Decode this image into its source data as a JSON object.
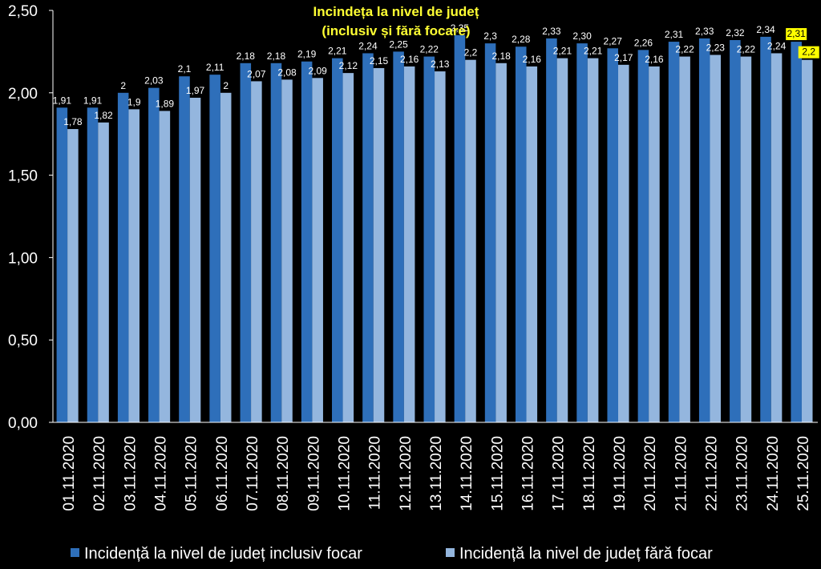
{
  "chart_data": {
    "type": "bar",
    "title": "Incindeța la nivel de județ",
    "subtitle": "(inclusiv și fără focare)",
    "categories": [
      "01.11.2020",
      "02.11.2020",
      "03.11.2020",
      "04.11.2020",
      "05.11.2020",
      "06.11.2020",
      "07.11.2020",
      "08.11.2020",
      "09.11.2020",
      "10.11.2020",
      "11.11.2020",
      "12.11.2020",
      "13.11.2020",
      "14.11.2020",
      "15.11.2020",
      "16.11.2020",
      "17.11.2020",
      "18.11.2020",
      "19.11.2020",
      "20.11.2020",
      "21.11.2020",
      "22.11.2020",
      "23.11.2020",
      "24.11.2020",
      "25.11.2020"
    ],
    "series": [
      {
        "name": "Incidență la nivel de județ inclusiv focar",
        "color": "#2e6fba",
        "values": [
          1.91,
          1.91,
          2.0,
          2.03,
          2.1,
          2.11,
          2.18,
          2.18,
          2.19,
          2.21,
          2.24,
          2.25,
          2.22,
          2.35,
          2.3,
          2.28,
          2.33,
          2.3,
          2.27,
          2.26,
          2.31,
          2.33,
          2.32,
          2.34,
          2.31
        ],
        "labels": [
          "1,91",
          "1,91",
          "2",
          "2,03",
          "2,1",
          "2,11",
          "2,18",
          "2,18",
          "2,19",
          "2,21",
          "2,24",
          "2,25",
          "2,22",
          "2,35",
          "2,3",
          "2,28",
          "2,33",
          "2,30",
          "2,27",
          "2,26",
          "2,31",
          "2,33",
          "2,32",
          "2,34",
          "2,31"
        ]
      },
      {
        "name": "Incidență la nivel de județ fără focar",
        "color": "#94b6de",
        "values": [
          1.78,
          1.82,
          1.9,
          1.89,
          1.97,
          2.0,
          2.07,
          2.08,
          2.09,
          2.12,
          2.15,
          2.16,
          2.13,
          2.2,
          2.18,
          2.16,
          2.21,
          2.21,
          2.17,
          2.16,
          2.22,
          2.23,
          2.22,
          2.24,
          2.2
        ],
        "labels": [
          "1,78",
          "1,82",
          "1,9",
          "1,89",
          "1,97",
          "2",
          "2,07",
          "2,08",
          "2,09",
          "2,12",
          "2,15",
          "2,16",
          "2,13",
          "2,2",
          "2,18",
          "2,16",
          "2,21",
          "2,21",
          "2,17",
          "2,16",
          "2,22",
          "2,23",
          "2,22",
          "2,24",
          "2,2"
        ]
      }
    ],
    "y_ticks": [
      "0,00",
      "0,50",
      "1,00",
      "1,50",
      "2,00",
      "2,50"
    ],
    "ylim": [
      0,
      2.5
    ],
    "grid": false,
    "legend_position": "bottom",
    "highlight_last_labels": true,
    "highlight_color": "#ffff00"
  }
}
